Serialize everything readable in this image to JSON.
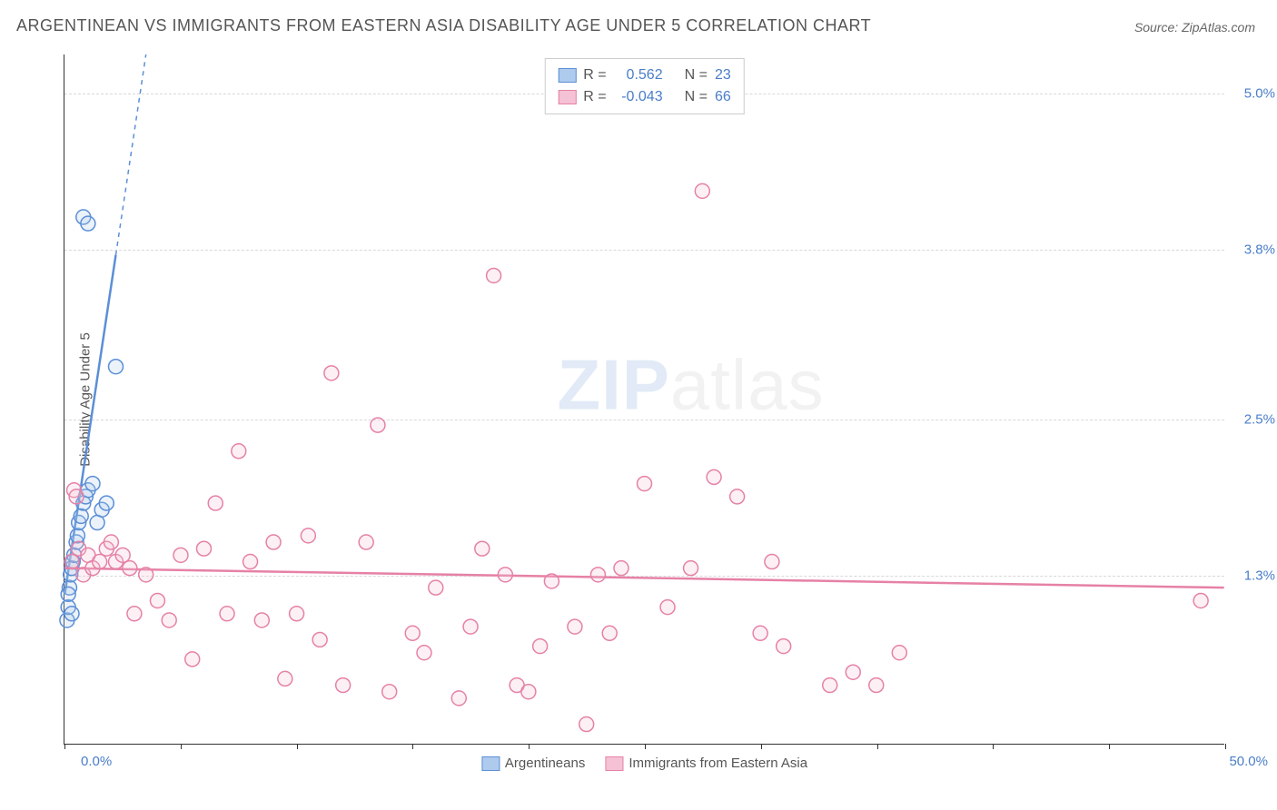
{
  "title": "ARGENTINEAN VS IMMIGRANTS FROM EASTERN ASIA DISABILITY AGE UNDER 5 CORRELATION CHART",
  "source": "Source: ZipAtlas.com",
  "watermark_zip": "ZIP",
  "watermark_atlas": "atlas",
  "y_axis_label": "Disability Age Under 5",
  "chart": {
    "type": "scatter",
    "xlim": [
      0,
      50
    ],
    "ylim": [
      0,
      5.3
    ],
    "x_min_label": "0.0%",
    "x_max_label": "50.0%",
    "y_ticks": [
      {
        "val": 1.3,
        "label": "1.3%"
      },
      {
        "val": 2.5,
        "label": "2.5%"
      },
      {
        "val": 3.8,
        "label": "3.8%"
      },
      {
        "val": 5.0,
        "label": "5.0%"
      }
    ],
    "x_tick_positions": [
      0,
      5,
      10,
      15,
      20,
      25,
      30,
      35,
      40,
      45,
      50
    ],
    "grid_color": "#d8d8d8",
    "background_color": "#ffffff",
    "axis_color": "#333333",
    "tick_label_color": "#4a7ec9",
    "marker_radius": 8,
    "marker_stroke_width": 1.5,
    "marker_fill_opacity": 0.25,
    "trend_line_width": 2.5,
    "series": [
      {
        "name": "Argentineans",
        "color_stroke": "#5b8fd6",
        "color_fill": "#aecaed",
        "correlation_r": "0.562",
        "correlation_n": "23",
        "trend": {
          "x1": 0,
          "y1": 1.15,
          "x2": 3.5,
          "y2": 5.3,
          "dash_from_x": 2.2
        },
        "points": [
          {
            "x": 0.1,
            "y": 0.95
          },
          {
            "x": 0.15,
            "y": 1.05
          },
          {
            "x": 0.2,
            "y": 1.2
          },
          {
            "x": 0.25,
            "y": 1.3
          },
          {
            "x": 0.3,
            "y": 1.35
          },
          {
            "x": 0.35,
            "y": 1.4
          },
          {
            "x": 0.4,
            "y": 1.45
          },
          {
            "x": 0.5,
            "y": 1.55
          },
          {
            "x": 0.55,
            "y": 1.6
          },
          {
            "x": 0.6,
            "y": 1.7
          },
          {
            "x": 0.7,
            "y": 1.75
          },
          {
            "x": 0.8,
            "y": 1.85
          },
          {
            "x": 0.9,
            "y": 1.9
          },
          {
            "x": 1.0,
            "y": 1.95
          },
          {
            "x": 1.2,
            "y": 2.0
          },
          {
            "x": 1.4,
            "y": 1.7
          },
          {
            "x": 1.6,
            "y": 1.8
          },
          {
            "x": 1.8,
            "y": 1.85
          },
          {
            "x": 2.2,
            "y": 2.9
          },
          {
            "x": 0.8,
            "y": 4.05
          },
          {
            "x": 1.0,
            "y": 4.0
          },
          {
            "x": 0.15,
            "y": 1.15
          },
          {
            "x": 0.3,
            "y": 1.0
          }
        ]
      },
      {
        "name": "Immigrants from Eastern Asia",
        "color_stroke": "#e681a6",
        "color_fill": "#f4c2d4",
        "correlation_r": "-0.043",
        "correlation_n": "66",
        "trend": {
          "x1": 0,
          "y1": 1.35,
          "x2": 50,
          "y2": 1.2,
          "dash_from_x": 999
        },
        "points": [
          {
            "x": 0.3,
            "y": 1.4
          },
          {
            "x": 0.4,
            "y": 1.95
          },
          {
            "x": 0.5,
            "y": 1.9
          },
          {
            "x": 0.6,
            "y": 1.5
          },
          {
            "x": 0.8,
            "y": 1.3
          },
          {
            "x": 1.0,
            "y": 1.45
          },
          {
            "x": 1.2,
            "y": 1.35
          },
          {
            "x": 1.5,
            "y": 1.4
          },
          {
            "x": 1.8,
            "y": 1.5
          },
          {
            "x": 2.0,
            "y": 1.55
          },
          {
            "x": 2.2,
            "y": 1.4
          },
          {
            "x": 2.5,
            "y": 1.45
          },
          {
            "x": 2.8,
            "y": 1.35
          },
          {
            "x": 3.0,
            "y": 1.0
          },
          {
            "x": 3.5,
            "y": 1.3
          },
          {
            "x": 4.0,
            "y": 1.1
          },
          {
            "x": 4.5,
            "y": 0.95
          },
          {
            "x": 5.0,
            "y": 1.45
          },
          {
            "x": 5.5,
            "y": 0.65
          },
          {
            "x": 6.0,
            "y": 1.5
          },
          {
            "x": 6.5,
            "y": 1.85
          },
          {
            "x": 7.0,
            "y": 1.0
          },
          {
            "x": 7.5,
            "y": 2.25
          },
          {
            "x": 8.0,
            "y": 1.4
          },
          {
            "x": 8.5,
            "y": 0.95
          },
          {
            "x": 9.0,
            "y": 1.55
          },
          {
            "x": 9.5,
            "y": 0.5
          },
          {
            "x": 10.0,
            "y": 1.0
          },
          {
            "x": 10.5,
            "y": 1.6
          },
          {
            "x": 11.0,
            "y": 0.8
          },
          {
            "x": 11.5,
            "y": 2.85
          },
          {
            "x": 12.0,
            "y": 0.45
          },
          {
            "x": 13.0,
            "y": 1.55
          },
          {
            "x": 13.5,
            "y": 2.45
          },
          {
            "x": 14.0,
            "y": 0.4
          },
          {
            "x": 15.0,
            "y": 0.85
          },
          {
            "x": 15.5,
            "y": 0.7
          },
          {
            "x": 16.0,
            "y": 1.2
          },
          {
            "x": 17.0,
            "y": 0.35
          },
          {
            "x": 17.5,
            "y": 0.9
          },
          {
            "x": 18.0,
            "y": 1.5
          },
          {
            "x": 18.5,
            "y": 3.6
          },
          {
            "x": 19.0,
            "y": 1.3
          },
          {
            "x": 19.5,
            "y": 0.45
          },
          {
            "x": 20.0,
            "y": 0.4
          },
          {
            "x": 20.5,
            "y": 0.75
          },
          {
            "x": 21.0,
            "y": 1.25
          },
          {
            "x": 22.0,
            "y": 0.9
          },
          {
            "x": 22.5,
            "y": 0.15
          },
          {
            "x": 23.0,
            "y": 1.3
          },
          {
            "x": 23.5,
            "y": 0.85
          },
          {
            "x": 24.0,
            "y": 1.35
          },
          {
            "x": 25.0,
            "y": 2.0
          },
          {
            "x": 26.0,
            "y": 1.05
          },
          {
            "x": 27.0,
            "y": 1.35
          },
          {
            "x": 27.5,
            "y": 4.25
          },
          {
            "x": 28.0,
            "y": 2.05
          },
          {
            "x": 29.0,
            "y": 1.9
          },
          {
            "x": 30.0,
            "y": 0.85
          },
          {
            "x": 30.5,
            "y": 1.4
          },
          {
            "x": 31.0,
            "y": 0.75
          },
          {
            "x": 33.0,
            "y": 0.45
          },
          {
            "x": 34.0,
            "y": 0.55
          },
          {
            "x": 35.0,
            "y": 0.45
          },
          {
            "x": 36.0,
            "y": 0.7
          },
          {
            "x": 49.0,
            "y": 1.1
          }
        ]
      }
    ]
  },
  "legend_top": {
    "r_label": "R =",
    "n_label": "N ="
  },
  "legend_bottom": {
    "series1_label": "Argentineans",
    "series2_label": "Immigrants from Eastern Asia"
  }
}
